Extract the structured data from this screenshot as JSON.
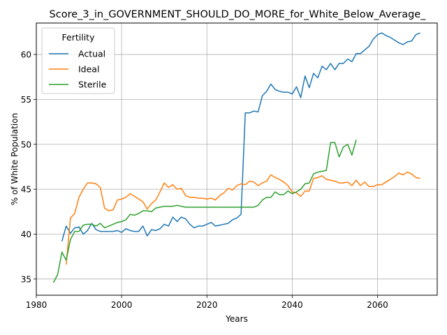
{
  "chart_data": {
    "type": "line",
    "title": "Score_3_in_GOVERNMENT_SHOULD_DO_MORE_for_White_Below_Average_",
    "xlabel": "Years",
    "ylabel": "% of White Population",
    "xlim": [
      1980,
      2074
    ],
    "ylim": [
      33.2,
      63.5
    ],
    "xticks": [
      1980,
      2000,
      2020,
      2040,
      2060
    ],
    "yticks": [
      35,
      40,
      45,
      50,
      55,
      60
    ],
    "grid": true,
    "legend": {
      "title": "Fertility",
      "placement": "top-left"
    },
    "series": [
      {
        "name": "Actual",
        "color": "#1f77b4",
        "x": [
          1986,
          1987,
          1988,
          1989,
          1990,
          1991,
          1992,
          1993,
          1994,
          1995,
          1996,
          1997,
          1998,
          1999,
          2000,
          2001,
          2002,
          2003,
          2004,
          2005,
          2006,
          2007,
          2008,
          2009,
          2010,
          2011,
          2012,
          2013,
          2014,
          2015,
          2016,
          2017,
          2018,
          2019,
          2020,
          2021,
          2022,
          2023,
          2024,
          2025,
          2026,
          2027,
          2028,
          2029,
          2030,
          2031,
          2032,
          2033,
          2034,
          2035,
          2036,
          2037,
          2038,
          2039,
          2040,
          2041,
          2042,
          2043,
          2044,
          2045,
          2046,
          2047,
          2048,
          2049,
          2050,
          2051,
          2052,
          2053,
          2054,
          2055,
          2056,
          2057,
          2058,
          2059,
          2060,
          2061,
          2062,
          2063,
          2064,
          2065,
          2066,
          2067,
          2068,
          2069,
          2070
        ],
        "values": [
          39.2,
          40.9,
          40.1,
          40.7,
          40.8,
          40.0,
          40.4,
          41.2,
          40.5,
          40.3,
          40.3,
          40.3,
          40.3,
          40.4,
          40.2,
          40.6,
          40.4,
          40.3,
          40.3,
          40.9,
          39.8,
          40.5,
          40.4,
          40.6,
          41.1,
          40.9,
          41.9,
          41.4,
          41.9,
          41.7,
          41.1,
          40.7,
          40.9,
          40.9,
          41.1,
          41.3,
          40.9,
          41.0,
          41.1,
          41.2,
          41.6,
          41.8,
          42.2,
          53.5,
          53.5,
          53.7,
          53.6,
          55.4,
          55.9,
          56.7,
          56.1,
          55.9,
          55.8,
          55.8,
          55.6,
          56.4,
          55.2,
          57.6,
          56.3,
          57.9,
          57.4,
          58.7,
          58.3,
          59.0,
          58.3,
          59.0,
          59.0,
          59.5,
          59.2,
          60.1,
          60.1,
          60.5,
          60.9,
          61.7,
          62.2,
          62.4,
          62.1,
          61.9,
          61.6,
          61.3,
          61.1,
          61.4,
          61.5,
          62.2,
          62.4
        ]
      },
      {
        "name": "Ideal",
        "color": "#ff7f0e",
        "x": [
          1987,
          1988,
          1989,
          1990,
          1991,
          1992,
          1993,
          1994,
          1995,
          1996,
          1997,
          1998,
          1999,
          2000,
          2001,
          2002,
          2003,
          2004,
          2005,
          2006,
          2007,
          2008,
          2009,
          2010,
          2011,
          2012,
          2013,
          2014,
          2015,
          2016,
          2017,
          2018,
          2019,
          2020,
          2021,
          2022,
          2023,
          2024,
          2025,
          2026,
          2027,
          2028,
          2029,
          2030,
          2031,
          2032,
          2033,
          2034,
          2035,
          2036,
          2037,
          2038,
          2039,
          2040,
          2041,
          2042,
          2043,
          2044,
          2045,
          2046,
          2047,
          2048,
          2049,
          2050,
          2051,
          2052,
          2053,
          2054,
          2055,
          2056,
          2057,
          2058,
          2059,
          2060,
          2061,
          2062,
          2063,
          2064,
          2065,
          2066,
          2067,
          2068,
          2069,
          2070
        ],
        "values": [
          36.6,
          41.8,
          42.3,
          44.1,
          45.0,
          45.7,
          45.7,
          45.6,
          45.2,
          42.9,
          42.6,
          42.7,
          43.8,
          43.9,
          44.1,
          44.5,
          44.2,
          43.9,
          43.6,
          42.8,
          43.4,
          43.8,
          44.7,
          45.7,
          45.2,
          45.5,
          45.0,
          45.1,
          44.3,
          44.1,
          44.1,
          44.0,
          44.0,
          43.9,
          44.0,
          43.8,
          44.3,
          44.6,
          45.1,
          44.9,
          45.4,
          45.6,
          45.5,
          45.9,
          45.8,
          45.4,
          45.7,
          45.9,
          46.6,
          46.3,
          46.1,
          45.8,
          45.4,
          44.7,
          44.6,
          44.2,
          44.8,
          44.8,
          46.2,
          46.3,
          46.5,
          46.1,
          46.0,
          45.9,
          45.7,
          45.7,
          45.8,
          45.4,
          46.0,
          45.4,
          45.8,
          45.3,
          45.3,
          45.5,
          45.5,
          45.8,
          46.1,
          46.4,
          46.8,
          46.6,
          46.9,
          46.7,
          46.3,
          46.2
        ]
      },
      {
        "name": "Sterile",
        "color": "#2ca02c",
        "x": [
          1984,
          1985,
          1986,
          1987,
          1988,
          1989,
          1990,
          1991,
          1992,
          1993,
          1994,
          1995,
          1996,
          1997,
          1998,
          1999,
          2000,
          2001,
          2002,
          2003,
          2004,
          2005,
          2006,
          2007,
          2008,
          2009,
          2010,
          2011,
          2012,
          2013,
          2014,
          2015,
          2016,
          2017,
          2018,
          2019,
          2020,
          2021,
          2022,
          2023,
          2024,
          2025,
          2026,
          2027,
          2028,
          2029,
          2030,
          2031,
          2032,
          2033,
          2034,
          2035,
          2036,
          2037,
          2038,
          2039,
          2040,
          2041,
          2042,
          2043,
          2044,
          2045,
          2046,
          2047,
          2048,
          2049,
          2050,
          2051,
          2052,
          2053,
          2054,
          2055
        ],
        "values": [
          34.6,
          35.5,
          38.0,
          37.1,
          39.4,
          40.3,
          40.3,
          41.0,
          41.1,
          41.1,
          40.9,
          41.2,
          40.7,
          40.9,
          41.1,
          41.3,
          41.4,
          41.6,
          42.2,
          42.1,
          42.3,
          42.6,
          42.6,
          42.5,
          42.9,
          43.0,
          43.1,
          43.1,
          43.1,
          43.2,
          43.1,
          43.0,
          43.0,
          43.0,
          43.0,
          43.0,
          43.0,
          43.0,
          43.0,
          43.0,
          43.0,
          43.0,
          43.0,
          43.0,
          43.0,
          43.0,
          43.0,
          43.0,
          43.2,
          43.8,
          44.1,
          44.1,
          44.7,
          44.4,
          44.4,
          44.8,
          44.5,
          44.7,
          45.0,
          45.6,
          45.7,
          46.7,
          46.9,
          47.0,
          47.1,
          50.2,
          50.2,
          48.6,
          49.7,
          50.0,
          48.8,
          50.5
        ]
      }
    ]
  }
}
